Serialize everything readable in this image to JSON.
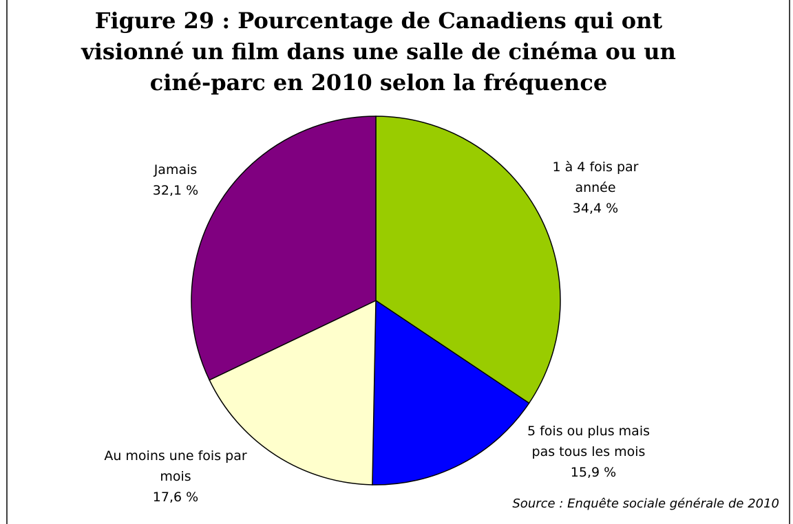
{
  "chart_data": {
    "type": "pie",
    "title": "Figure 29 : Pourcentage de Canadiens qui ont visionné un film dans une salle de cinéma ou un ciné-parc en 2010 selon la fréquence",
    "categories": [
      "1 à 4 fois par année",
      "5 fois ou plus mais pas tous les mois",
      "Au moins une fois par mois",
      "Jamais"
    ],
    "values": [
      34.4,
      15.9,
      17.6,
      32.1
    ],
    "value_labels": [
      "34,4 %",
      "15,9 %",
      "17,6 %",
      "32,1 %"
    ],
    "colors": [
      "#99cc00",
      "#0000ff",
      "#ffffcc",
      "#800080"
    ],
    "source": "Source : Enquête sociale générale de 2010"
  }
}
